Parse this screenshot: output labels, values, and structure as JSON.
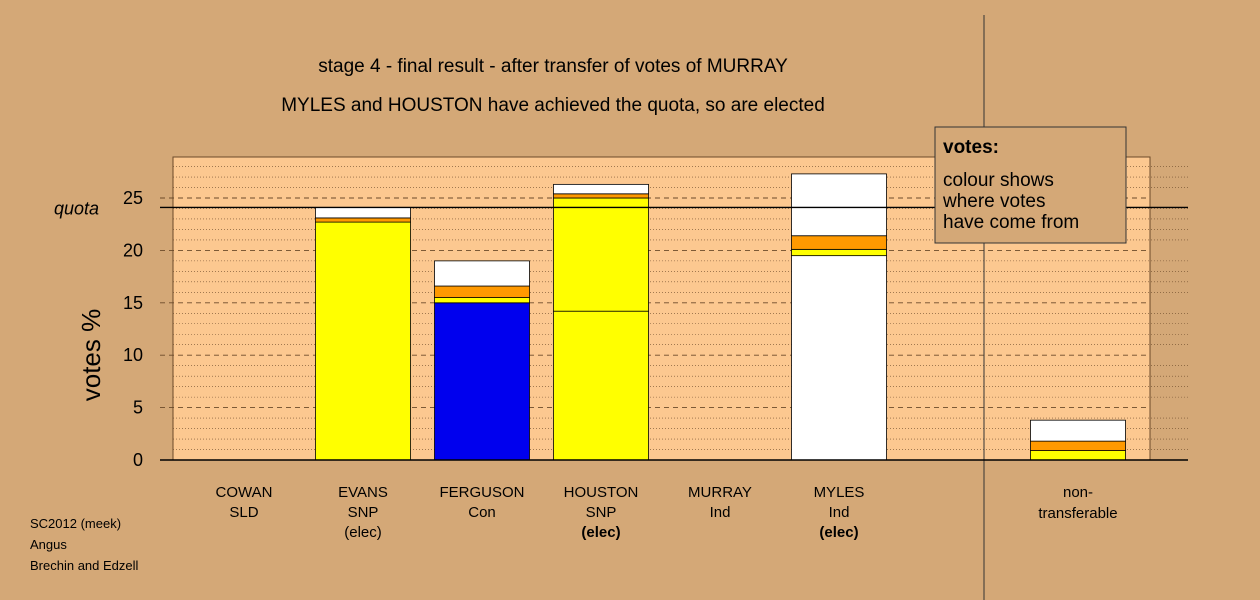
{
  "title_line1": "stage 4 - final result - after transfer of votes of MURRAY",
  "title_line2": "MYLES and HOUSTON have achieved the quota, so are elected",
  "legend": {
    "heading": "votes:",
    "line1": "colour shows",
    "line2": "where votes",
    "line3": "have come from"
  },
  "footer": {
    "line1": "SC2012 (meek)",
    "line2": "Angus",
    "line3": "Brechin and Edzell"
  },
  "colors": {
    "background": "#d4a877",
    "plot_area": "#fcc890",
    "snp": "#ffff00",
    "con": "#0000ee",
    "ind": "#ffffff",
    "transfer": "#ff9900"
  },
  "chart_data": {
    "type": "bar",
    "stacked": true,
    "ylabel": "votes %",
    "ylim": [
      0,
      29
    ],
    "yticks": [
      0,
      5,
      10,
      15,
      20,
      25
    ],
    "quota": 24.1,
    "quota_label": "quota",
    "grid": true,
    "legend_position": "top-right",
    "categories": [
      {
        "name": "COWAN",
        "party": "SLD",
        "status": ""
      },
      {
        "name": "EVANS",
        "party": "SNP",
        "status": "(elec)"
      },
      {
        "name": "FERGUSON",
        "party": "Con",
        "status": ""
      },
      {
        "name": "HOUSTON",
        "party": "SNP",
        "status": "(elec)"
      },
      {
        "name": "MURRAY",
        "party": "Ind",
        "status": ""
      },
      {
        "name": "MYLES",
        "party": "Ind",
        "status": "(elec)"
      }
    ],
    "nontransferable": {
      "label1": "non-",
      "label2": "transferable"
    },
    "stacks": [
      {
        "segments": [
          {
            "color": "#ffffff",
            "value": 0
          }
        ]
      },
      {
        "segments": [
          {
            "color": "#ffff00",
            "value": 22.7
          },
          {
            "color": "#ff9900",
            "value": 0.4
          },
          {
            "color": "#ffffff",
            "value": 1.0
          }
        ]
      },
      {
        "segments": [
          {
            "color": "#0000ee",
            "value": 15.0
          },
          {
            "color": "#ffff00",
            "value": 0.5
          },
          {
            "color": "#ff9900",
            "value": 1.1
          },
          {
            "color": "#ffffff",
            "value": 2.4
          }
        ]
      },
      {
        "segments": [
          {
            "color": "#ffff00",
            "value": 14.2
          },
          {
            "color": "#ffff00",
            "value": 10.8
          },
          {
            "color": "#ff9900",
            "value": 0.4
          },
          {
            "color": "#ffffff",
            "value": 0.9
          }
        ]
      },
      {
        "segments": [
          {
            "color": "#ffffff",
            "value": 0
          }
        ]
      },
      {
        "segments": [
          {
            "color": "#ffffff",
            "value": 19.5
          },
          {
            "color": "#ffff00",
            "value": 0.6
          },
          {
            "color": "#ff9900",
            "value": 1.3
          },
          {
            "color": "#ffffff",
            "value": 5.9
          }
        ]
      },
      {
        "segments": [
          {
            "color": "#ffff00",
            "value": 0.9
          },
          {
            "color": "#ff9900",
            "value": 0.9
          },
          {
            "color": "#ffffff",
            "value": 2.0
          }
        ]
      }
    ]
  }
}
